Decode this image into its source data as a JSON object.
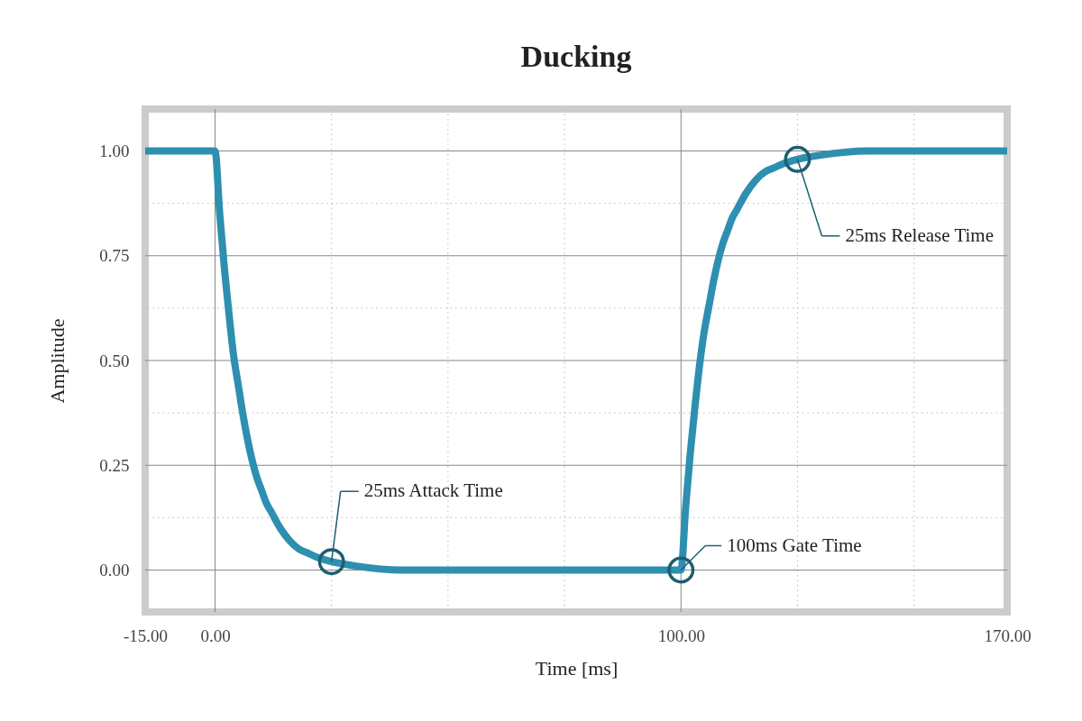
{
  "chart_data": {
    "type": "line",
    "title": "Ducking",
    "xlabel": "Time [ms]",
    "ylabel": "Amplitude",
    "x": [
      -15,
      0,
      1,
      2,
      3,
      4,
      5,
      6,
      7,
      8,
      9,
      10,
      11,
      12,
      14,
      16,
      18,
      20,
      22,
      25,
      30,
      40,
      100,
      101,
      102,
      103,
      104,
      105,
      106,
      107,
      108,
      109,
      110,
      111,
      112,
      114,
      116,
      118,
      120,
      122,
      125,
      130,
      140,
      170
    ],
    "series": [
      {
        "color": "#2e8fb0",
        "values": [
          1,
          1,
          0.85,
          0.72,
          0.61,
          0.51,
          0.44,
          0.37,
          0.31,
          0.26,
          0.22,
          0.19,
          0.16,
          0.14,
          0.1,
          0.07,
          0.05,
          0.04,
          0.03,
          0.02,
          0.01,
          0,
          0,
          0.15,
          0.28,
          0.39,
          0.49,
          0.57,
          0.63,
          0.69,
          0.74,
          0.78,
          0.81,
          0.84,
          0.86,
          0.9,
          0.93,
          0.95,
          0.96,
          0.97,
          0.98,
          0.99,
          1,
          1
        ]
      }
    ],
    "xlim": [
      -15,
      170
    ],
    "ylim": [
      -0.1,
      1.1
    ],
    "xticks": [
      {
        "value": -15,
        "label": "-15.00"
      },
      {
        "value": 0,
        "label": "0.00"
      },
      {
        "value": 25,
        "label": null
      },
      {
        "value": 50,
        "label": null
      },
      {
        "value": 75,
        "label": null
      },
      {
        "value": 100,
        "label": "100.00"
      },
      {
        "value": 125,
        "label": null
      },
      {
        "value": 150,
        "label": null
      },
      {
        "value": 170,
        "label": "170.00"
      }
    ],
    "yticks": [
      {
        "value": 0,
        "label": "0.00"
      },
      {
        "value": 0.125,
        "label": null
      },
      0.25,
      {
        "value": 0.375,
        "label": null
      },
      {
        "value": 0.5,
        "label": "0.50"
      },
      {
        "value": 0.625,
        "label": null
      },
      0.75,
      {
        "value": 0.875,
        "label": null
      },
      {
        "value": 1,
        "label": "1.00"
      }
    ],
    "grid": true,
    "annotations": [
      {
        "text": "25ms Attack Time",
        "x": 25,
        "y": 0.02
      },
      {
        "text": "100ms Gate Time",
        "x": 100,
        "y": 0
      },
      {
        "text": "25ms Release Time",
        "x": 125,
        "y": 0.98
      }
    ]
  }
}
